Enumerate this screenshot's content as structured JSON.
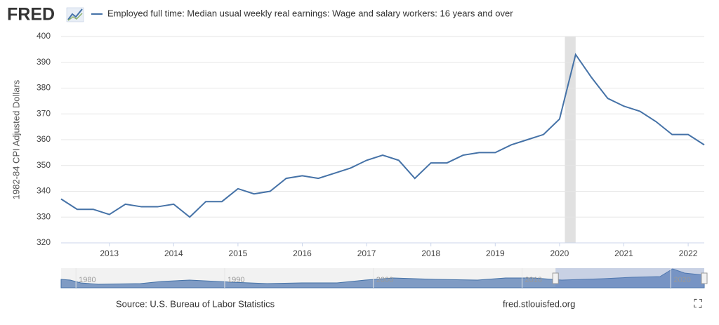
{
  "logo": "FRED",
  "chart_data": {
    "type": "line",
    "series": [
      {
        "name": "Employed full time: Median usual weekly real earnings: Wage and salary workers: 16 years and over",
        "color": "#4572a7",
        "values": [
          337,
          333,
          333,
          331,
          335,
          334,
          334,
          335,
          330,
          336,
          336,
          341,
          339,
          340,
          345,
          346,
          345,
          347,
          349,
          352,
          354,
          352,
          345,
          351,
          351,
          354,
          355,
          355,
          358,
          360,
          362,
          368,
          393,
          384,
          376,
          373,
          371,
          367,
          362,
          362,
          358
        ]
      }
    ],
    "x": [
      2012.25,
      2012.5,
      2012.75,
      2013,
      2013.25,
      2013.5,
      2013.75,
      2014,
      2014.25,
      2014.5,
      2014.75,
      2015,
      2015.25,
      2015.5,
      2015.75,
      2016,
      2016.25,
      2016.5,
      2016.75,
      2017,
      2017.25,
      2017.5,
      2017.75,
      2018,
      2018.25,
      2018.5,
      2018.75,
      2019,
      2019.25,
      2019.5,
      2019.75,
      2020,
      2020.25,
      2020.5,
      2020.75,
      2021,
      2021.25,
      2021.5,
      2021.75,
      2022,
      2022.25
    ],
    "xlim": [
      2012.25,
      2022.25
    ],
    "xticks": [
      2013,
      2014,
      2015,
      2016,
      2017,
      2018,
      2019,
      2020,
      2021,
      2022
    ],
    "ylim": [
      320,
      400
    ],
    "yticks": [
      320,
      330,
      340,
      350,
      360,
      370,
      380,
      390,
      400
    ],
    "y_label": "1982-84 CPI Adjusted Dollars",
    "grid": true,
    "recession": [
      2020.083,
      2020.25
    ],
    "navigator": {
      "xlim": [
        1979,
        2022.25
      ],
      "xticks": [
        1980,
        1990,
        2000,
        2010,
        2020
      ],
      "selected": [
        2012.25,
        2022.25
      ]
    }
  },
  "footer": {
    "source": "Source: U.S. Bureau of Labor Statistics",
    "site": "fred.stlouisfed.org"
  }
}
